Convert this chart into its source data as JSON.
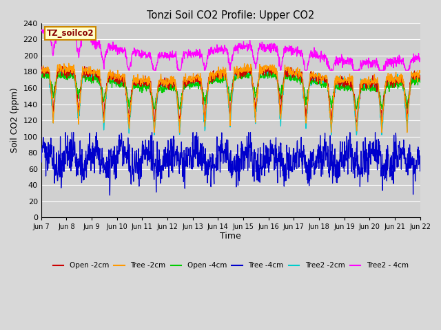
{
  "title": "Tonzi Soil CO2 Profile: Upper CO2",
  "ylabel": "Soil CO2 (ppm)",
  "xlabel": "Time",
  "legend_label": "TZ_soilco2",
  "series_labels": [
    "Open -2cm",
    "Tree -2cm",
    "Open -4cm",
    "Tree -4cm",
    "Tree2 -2cm",
    "Tree2 - 4cm"
  ],
  "series_colors": [
    "#cc0000",
    "#ff9900",
    "#00cc00",
    "#0000cc",
    "#00cccc",
    "#ff00ff"
  ],
  "ylim": [
    0,
    240
  ],
  "yticks": [
    0,
    20,
    40,
    60,
    80,
    100,
    120,
    140,
    160,
    180,
    200,
    220,
    240
  ],
  "background_color": "#d8d8d8",
  "plot_background": "#d0d0d0",
  "days": 15,
  "xtick_labels": [
    "Jun 7",
    "Jun 8",
    "Jun 9",
    "Jun 10",
    "Jun 11",
    "Jun 12",
    "Jun 13",
    "Jun 14",
    "Jun 15",
    "Jun 16",
    "Jun 17",
    "Jun 18",
    "Jun 19",
    "Jun 20",
    "Jun 21",
    "Jun 22"
  ],
  "legend_box_color": "#ffffcc",
  "legend_box_edge": "#cc8800",
  "legend_text_color": "#880000",
  "figsize": [
    6.4,
    4.8
  ],
  "dpi": 100
}
